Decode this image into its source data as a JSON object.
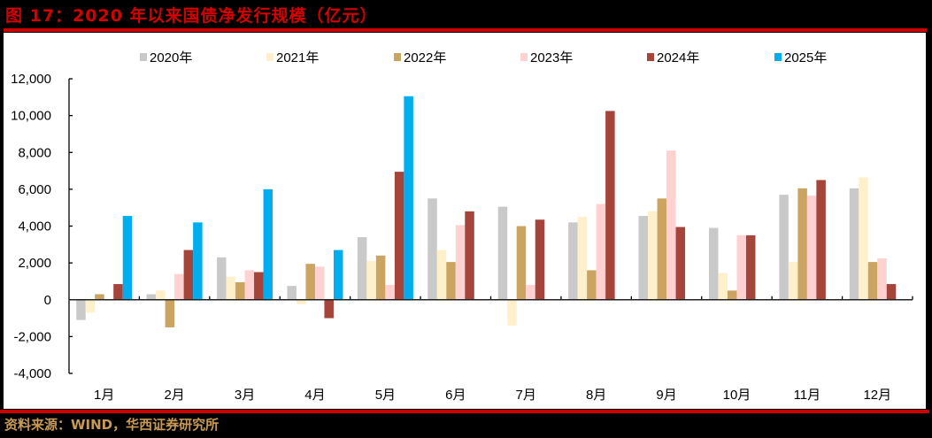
{
  "figure": {
    "title": "图 17：2020 年以来国债净发行规模（亿元）",
    "source": "资料来源：WIND，华西证券研究所"
  },
  "colors": {
    "background": "#000000",
    "panel": "#ffffff",
    "rule": "#cc0000",
    "title": "#d40000",
    "source": "#c89a56"
  },
  "chart_data": {
    "type": "bar",
    "title": "2020 年以来国债净发行规模（亿元）",
    "xlabel": "",
    "ylabel": "",
    "ylim": [
      -4000,
      12000
    ],
    "yticks": [
      -4000,
      -2000,
      0,
      2000,
      4000,
      6000,
      8000,
      10000,
      12000
    ],
    "ytick_labels": [
      "-4,000",
      "-2,000",
      "0",
      "2,000",
      "4,000",
      "6,000",
      "8,000",
      "10,000",
      "12,000"
    ],
    "grid": false,
    "legend_position": "top",
    "categories": [
      "1月",
      "2月",
      "3月",
      "4月",
      "5月",
      "6月",
      "7月",
      "8月",
      "9月",
      "10月",
      "11月",
      "12月"
    ],
    "series": [
      {
        "name": "2020年",
        "color": "#c9c9c9",
        "values": [
          -1100,
          300,
          2300,
          750,
          3400,
          5500,
          5050,
          4200,
          4550,
          3900,
          5700,
          6050
        ]
      },
      {
        "name": "2021年",
        "color": "#fff0cc",
        "values": [
          -700,
          500,
          1250,
          -250,
          2100,
          2700,
          -1400,
          4500,
          4800,
          1450,
          2050,
          6650
        ]
      },
      {
        "name": "2022年",
        "color": "#cca462",
        "values": [
          300,
          -1500,
          950,
          1950,
          2400,
          2050,
          4000,
          1600,
          5500,
          500,
          6050,
          2050
        ]
      },
      {
        "name": "2023年",
        "color": "#ffd1d1",
        "values": [
          0,
          1400,
          1600,
          1800,
          800,
          4050,
          800,
          5200,
          8100,
          3500,
          5650,
          2250
        ]
      },
      {
        "name": "2024年",
        "color": "#a5443a",
        "values": [
          850,
          2700,
          1500,
          -1000,
          6950,
          4800,
          4350,
          10250,
          3950,
          3500,
          6500,
          850
        ]
      },
      {
        "name": "2025年",
        "color": "#00aeef",
        "values": [
          4550,
          4200,
          6000,
          2700,
          11050,
          null,
          null,
          null,
          null,
          null,
          null,
          null
        ]
      }
    ]
  }
}
